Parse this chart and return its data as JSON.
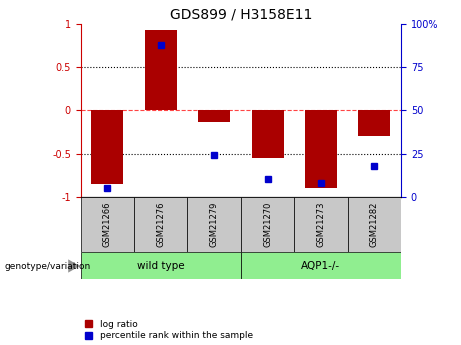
{
  "title": "GDS899 / H3158E11",
  "categories": [
    "GSM21266",
    "GSM21276",
    "GSM21279",
    "GSM21270",
    "GSM21273",
    "GSM21282"
  ],
  "log_ratios": [
    -0.85,
    0.93,
    -0.13,
    -0.55,
    -0.9,
    -0.3
  ],
  "percentile_ranks": [
    5,
    88,
    24,
    10,
    8,
    18
  ],
  "bar_color": "#AA0000",
  "dot_color": "#0000CC",
  "zero_line_color": "#FF4444",
  "dotted_line_color": "#000000",
  "left_axis_color": "#CC0000",
  "right_axis_color": "#0000CC",
  "ylim": [
    -1,
    1
  ],
  "right_ylim": [
    0,
    100
  ],
  "right_yticks": [
    0,
    25,
    50,
    75,
    100
  ],
  "left_yticks": [
    -1,
    -0.5,
    0,
    0.5,
    1
  ],
  "left_yticklabels": [
    "-1",
    "-0.5",
    "0",
    "0.5",
    "1"
  ],
  "right_yticklabels": [
    "0",
    "25",
    "50",
    "75",
    "100%"
  ],
  "dotted_lines": [
    -0.5,
    0.5
  ],
  "wt_color": "#90EE90",
  "aqp_color": "#90EE90",
  "label_box_color": "#C8C8C8",
  "genotype_label": "genotype/variation",
  "wt_label": "wild type",
  "aqp_label": "AQP1-/-",
  "legend_items": [
    {
      "label": "log ratio",
      "color": "#AA0000"
    },
    {
      "label": "percentile rank within the sample",
      "color": "#0000CC"
    }
  ]
}
